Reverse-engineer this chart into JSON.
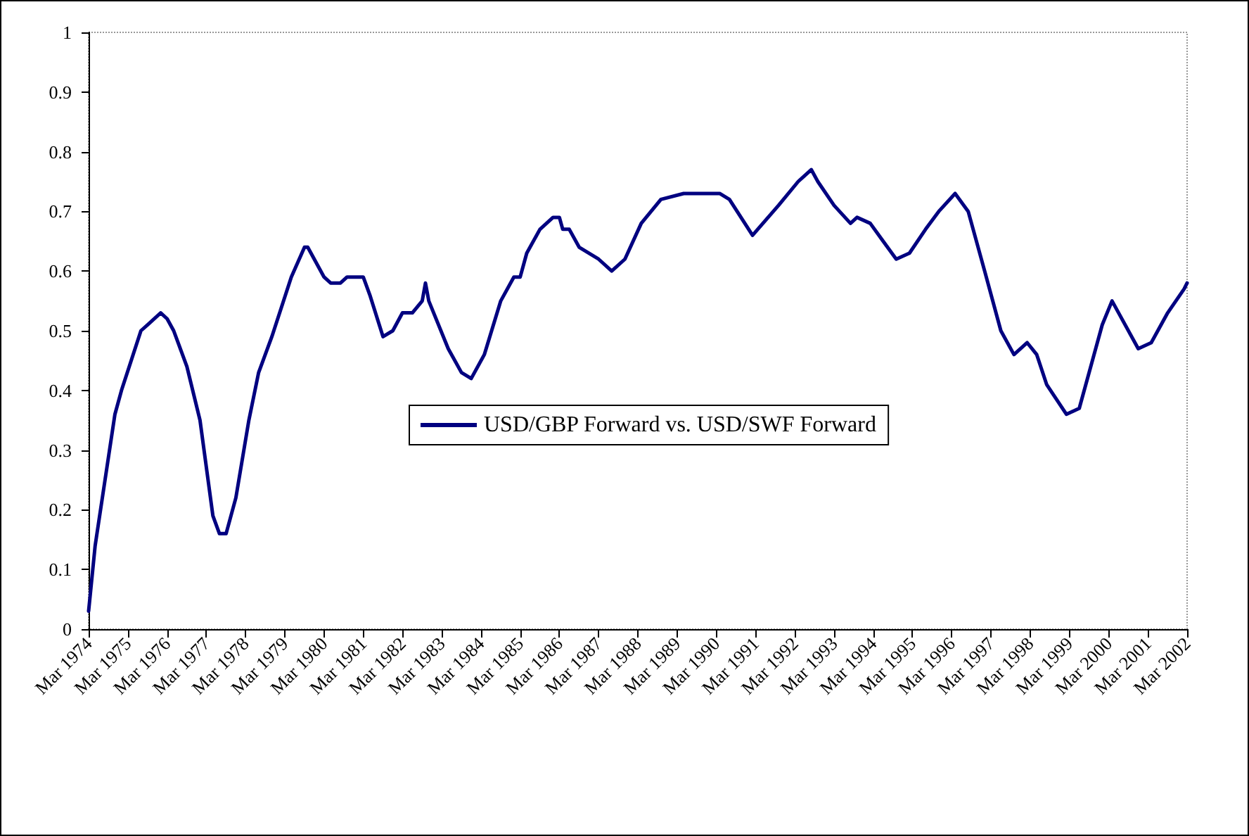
{
  "chart_data": {
    "type": "line",
    "x": [
      "1974-03",
      "1974-05",
      "1974-11",
      "1975-01",
      "1975-07",
      "1975-09",
      "1976-01",
      "1976-03",
      "1976-05",
      "1976-09",
      "1977-01",
      "1977-05",
      "1977-07",
      "1977-09",
      "1977-12",
      "1978-04",
      "1978-07",
      "1978-11",
      "1979-05",
      "1979-09",
      "1979-10",
      "1980-03",
      "1980-05",
      "1980-08",
      "1980-10",
      "1981-03",
      "1981-05",
      "1981-09",
      "1981-12",
      "1982-03",
      "1982-06",
      "1982-09",
      "1982-10",
      "1982-11",
      "1983-05",
      "1983-09",
      "1983-12",
      "1984-04",
      "1984-09",
      "1985-01",
      "1985-03",
      "1985-05",
      "1985-09",
      "1986-01",
      "1986-03",
      "1986-04",
      "1986-06",
      "1986-09",
      "1987-03",
      "1987-07",
      "1987-11",
      "1988-04",
      "1988-10",
      "1989-05",
      "1989-12",
      "1990-04",
      "1990-07",
      "1991-02",
      "1991-10",
      "1992-04",
      "1992-08",
      "1992-10",
      "1993-03",
      "1993-08",
      "1993-10",
      "1994-02",
      "1994-06",
      "1994-10",
      "1995-02",
      "1995-07",
      "1995-11",
      "1996-04",
      "1996-08",
      "1997-01",
      "1997-06",
      "1997-10",
      "1998-02",
      "1998-05",
      "1998-08",
      "1999-02",
      "1999-06",
      "2000-01",
      "2000-04",
      "2000-12",
      "2001-04",
      "2001-09",
      "2002-02",
      "2002-03"
    ],
    "series": [
      {
        "name": "USD/GBP Forward vs. USD/SWF Forward",
        "color": "#000080",
        "values": [
          0.03,
          0.14,
          0.36,
          0.4,
          0.5,
          0.51,
          0.53,
          0.52,
          0.5,
          0.44,
          0.35,
          0.19,
          0.16,
          0.16,
          0.22,
          0.35,
          0.43,
          0.49,
          0.59,
          0.64,
          0.64,
          0.59,
          0.58,
          0.58,
          0.59,
          0.59,
          0.56,
          0.49,
          0.5,
          0.53,
          0.53,
          0.55,
          0.58,
          0.55,
          0.47,
          0.43,
          0.42,
          0.46,
          0.55,
          0.59,
          0.59,
          0.63,
          0.67,
          0.69,
          0.69,
          0.67,
          0.67,
          0.64,
          0.62,
          0.6,
          0.62,
          0.68,
          0.72,
          0.73,
          0.73,
          0.73,
          0.72,
          0.66,
          0.71,
          0.75,
          0.77,
          0.75,
          0.71,
          0.68,
          0.69,
          0.68,
          0.65,
          0.62,
          0.63,
          0.67,
          0.7,
          0.73,
          0.7,
          0.6,
          0.5,
          0.46,
          0.48,
          0.46,
          0.41,
          0.36,
          0.37,
          0.51,
          0.55,
          0.47,
          0.48,
          0.53,
          0.57,
          0.58
        ]
      }
    ],
    "xlim": [
      "1974-03",
      "2002-03"
    ],
    "xticks": [
      {
        "value": "1974-03",
        "label": "Mar 1974"
      },
      {
        "value": "1975-03",
        "label": "Mar 1975"
      },
      {
        "value": "1976-03",
        "label": "Mar 1976"
      },
      {
        "value": "1977-03",
        "label": "Mar 1977"
      },
      {
        "value": "1978-03",
        "label": "Mar 1978"
      },
      {
        "value": "1979-03",
        "label": "Mar 1979"
      },
      {
        "value": "1980-03",
        "label": "Mar 1980"
      },
      {
        "value": "1981-03",
        "label": "Mar 1981"
      },
      {
        "value": "1982-03",
        "label": "Mar 1982"
      },
      {
        "value": "1983-03",
        "label": "Mar 1983"
      },
      {
        "value": "1984-03",
        "label": "Mar 1984"
      },
      {
        "value": "1985-03",
        "label": "Mar 1985"
      },
      {
        "value": "1986-03",
        "label": "Mar 1986"
      },
      {
        "value": "1987-03",
        "label": "Mar 1987"
      },
      {
        "value": "1988-03",
        "label": "Mar 1988"
      },
      {
        "value": "1989-03",
        "label": "Mar 1989"
      },
      {
        "value": "1990-03",
        "label": "Mar 1990"
      },
      {
        "value": "1991-03",
        "label": "Mar 1991"
      },
      {
        "value": "1992-03",
        "label": "Mar 1992"
      },
      {
        "value": "1993-03",
        "label": "Mar 1993"
      },
      {
        "value": "1994-03",
        "label": "Mar 1994"
      },
      {
        "value": "1995-03",
        "label": "Mar 1995"
      },
      {
        "value": "1996-03",
        "label": "Mar 1996"
      },
      {
        "value": "1997-03",
        "label": "Mar 1997"
      },
      {
        "value": "1998-03",
        "label": "Mar 1998"
      },
      {
        "value": "1999-03",
        "label": "Mar 1999"
      },
      {
        "value": "2000-03",
        "label": "Mar 2000"
      },
      {
        "value": "2001-03",
        "label": "Mar 2001"
      },
      {
        "value": "2002-03",
        "label": "Mar 2002"
      }
    ],
    "ylim": [
      0,
      1
    ],
    "yticks": [
      0,
      0.1,
      0.2,
      0.3,
      0.4,
      0.5,
      0.6,
      0.7,
      0.8,
      0.9,
      1
    ],
    "grid": false,
    "legend": "center",
    "marker": "none",
    "line_style": "solid"
  }
}
